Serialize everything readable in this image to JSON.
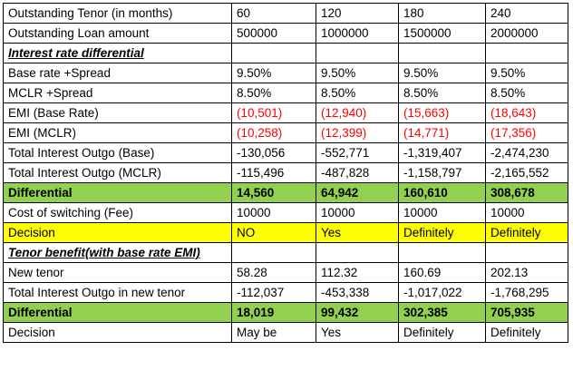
{
  "rows": {
    "tenor": [
      "Outstanding Tenor (in months)",
      "60",
      "120",
      "180",
      "240"
    ],
    "loan": [
      "Outstanding Loan amount",
      "500000",
      "1000000",
      "1500000",
      "2000000"
    ],
    "section1": "Interest rate differential",
    "base_rate": [
      "Base rate +Spread",
      "9.50%",
      "9.50%",
      "9.50%",
      "9.50%"
    ],
    "mclr": [
      "MCLR +Spread",
      "8.50%",
      "8.50%",
      "8.50%",
      "8.50%"
    ],
    "emi_base": [
      "EMI (Base Rate)",
      "(10,501)",
      "(12,940)",
      "(15,663)",
      "(18,643)"
    ],
    "emi_mclr": [
      "EMI (MCLR)",
      "(10,258)",
      "(12,399)",
      "(14,771)",
      "(17,356)"
    ],
    "outgo_base": [
      "Total Interest Outgo (Base)",
      "-130,056",
      "-552,771",
      "-1,319,407",
      "-2,474,230"
    ],
    "outgo_mclr": [
      "Total Interest Outgo (MCLR)",
      "-115,496",
      "-487,828",
      "-1,158,797",
      "-2,165,552"
    ],
    "differential1": [
      "Differential",
      "14,560",
      "64,942",
      "160,610",
      "308,678"
    ],
    "switch_cost": [
      "Cost of switching (Fee)",
      "10000",
      "10000",
      "10000",
      "10000"
    ],
    "decision1": [
      "Decision",
      "NO",
      "Yes",
      "Definitely",
      "Definitely"
    ],
    "section2": "Tenor benefit(with base rate EMI)",
    "new_tenor": [
      "New tenor",
      "58.28",
      "112.32",
      "160.69",
      "202.13"
    ],
    "outgo_new": [
      "Total Interest Outgo in new tenor",
      "-112,037",
      "-453,338",
      "-1,017,022",
      "-1,768,295"
    ],
    "differential2": [
      "Differential",
      "18,019",
      "99,432",
      "302,385",
      "705,935"
    ],
    "decision2": [
      "Decision",
      "May be",
      "Yes",
      "Definitely",
      "Definitely"
    ]
  },
  "colors": {
    "green_fill": "#92d050",
    "yellow_fill": "#ffff00",
    "negative_text": "#ff0000"
  }
}
